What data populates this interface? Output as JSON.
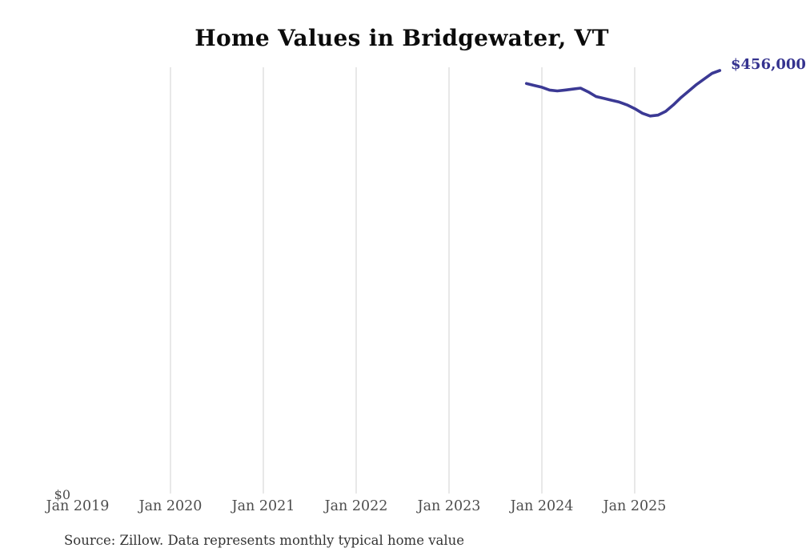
{
  "chart": {
    "title": "Home Values in Bridgewater, VT",
    "y_zero_label": "$0",
    "end_label": "$456,000",
    "source": "Source: Zillow. Data represents monthly typical home value",
    "line_color": "#3b3994",
    "gridline_color": "#d2d2d2"
  },
  "chart_data": {
    "type": "line",
    "title": "Home Values in Bridgewater, VT",
    "xlabel": "",
    "ylabel": "",
    "x_tick_labels": [
      "Jan 2019",
      "Jan 2020",
      "Jan 2021",
      "Jan 2022",
      "Jan 2023",
      "Jan 2024",
      "Jan 2025"
    ],
    "ylim": [
      0,
      460000
    ],
    "grid": "vertical-only",
    "legend": "none",
    "annotations": [
      "$0 at axis origin",
      "$456,000 at series end (clipped by right edge)"
    ],
    "series": [
      {
        "name": "Typical home value",
        "x": [
          "Nov 2023",
          "Dec 2023",
          "Jan 2024",
          "Feb 2024",
          "Mar 2024",
          "Apr 2024",
          "May 2024",
          "Jun 2024",
          "Jul 2024",
          "Aug 2024",
          "Sep 2024",
          "Oct 2024",
          "Nov 2024",
          "Dec 2024",
          "Jan 2025",
          "Feb 2025",
          "Mar 2025",
          "Apr 2025",
          "May 2025",
          "Jun 2025",
          "Jul 2025",
          "Aug 2025",
          "Sep 2025",
          "Oct 2025",
          "Nov 2025",
          "Dec 2025"
        ],
        "values": [
          442000,
          440000,
          438000,
          435000,
          434000,
          435000,
          436000,
          437000,
          433000,
          428000,
          426000,
          424000,
          422000,
          419000,
          415000,
          410000,
          407000,
          408000,
          412000,
          419000,
          427000,
          434000,
          441000,
          447000,
          453000,
          456000
        ]
      }
    ]
  }
}
